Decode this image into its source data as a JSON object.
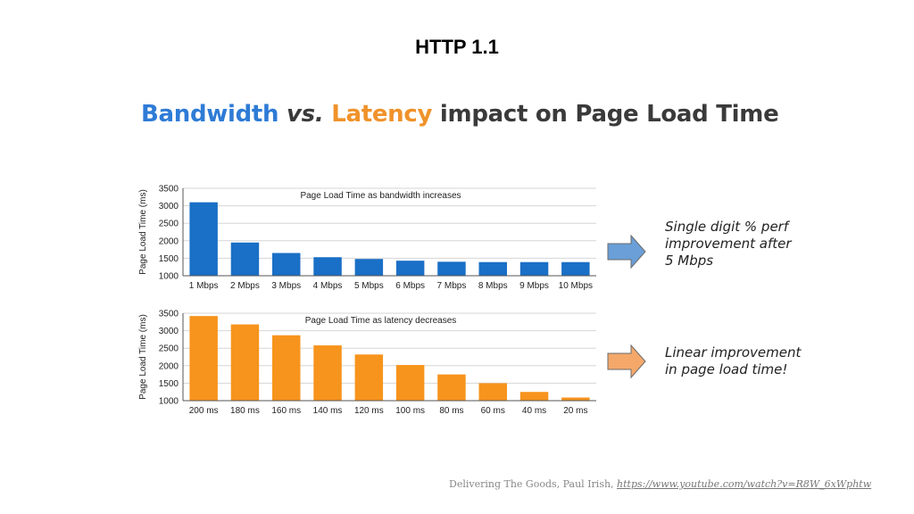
{
  "slide": {
    "title": "HTTP 1.1"
  },
  "heading": {
    "bandwidth": "Bandwidth",
    "vs": "vs.",
    "latency": "Latency",
    "rest": "impact on Page Load Time"
  },
  "colors": {
    "bandwidth_bar": "#1a6fc6",
    "latency_bar": "#f7941d",
    "bandwidth_arrow": "#6a9fd8",
    "latency_arrow": "#f4a86a"
  },
  "chart_data": [
    {
      "type": "bar",
      "title": "Page Load Time as bandwidth increases",
      "ylabel": "Page Load Time (ms)",
      "xlabel": "",
      "categories": [
        "1 Mbps",
        "2 Mbps",
        "3 Mbps",
        "4 Mbps",
        "5 Mbps",
        "6 Mbps",
        "7 Mbps",
        "8 Mbps",
        "9 Mbps",
        "10 Mbps"
      ],
      "values": [
        3100,
        1950,
        1650,
        1530,
        1480,
        1430,
        1400,
        1390,
        1390,
        1390
      ],
      "ylim": [
        1000,
        3500
      ],
      "yticks": [
        1000,
        1500,
        2000,
        2500,
        3000,
        3500
      ],
      "grid": true
    },
    {
      "type": "bar",
      "title": "Page Load Time as latency decreases",
      "ylabel": "Page Load Time (ms)",
      "xlabel": "",
      "categories": [
        "200 ms",
        "180 ms",
        "160 ms",
        "140 ms",
        "120 ms",
        "100 ms",
        "80 ms",
        "60 ms",
        "40 ms",
        "20 ms"
      ],
      "values": [
        3420,
        3180,
        2870,
        2580,
        2320,
        2020,
        1750,
        1500,
        1250,
        1090
      ],
      "ylim": [
        1000,
        3500
      ],
      "yticks": [
        1000,
        1500,
        2000,
        2500,
        3000,
        3500
      ],
      "grid": true
    }
  ],
  "callouts": {
    "bandwidth": [
      "Single digit % perf",
      "improvement after",
      "5 Mbps"
    ],
    "latency": [
      "Linear improvement",
      "in page load time!"
    ]
  },
  "caption": {
    "text": "Delivering The Goods, Paul Irish,",
    "link": "https://www.youtube.com/watch?v=R8W_6xWphtw"
  }
}
